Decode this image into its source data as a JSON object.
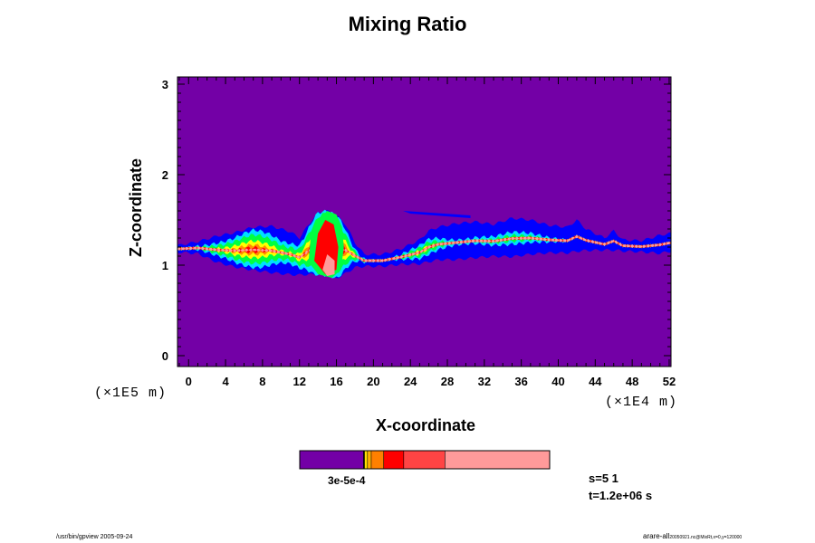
{
  "chart_data": {
    "type": "heatmap",
    "title": "Mixing Ratio",
    "xlabel": "X-coordinate",
    "ylabel": "Z-coordinate",
    "x_unit": "(×1E4 m)",
    "z_unit": "(×1E5 m)",
    "x_ticks": [
      "0",
      "4",
      "8",
      "12",
      "16",
      "20",
      "24",
      "28",
      "32",
      "36",
      "40",
      "44",
      "48",
      "52"
    ],
    "z_ticks": [
      "0",
      "1",
      "2",
      "3"
    ],
    "xlim": [
      -1.2,
      52.2
    ],
    "zlim": [
      -0.12,
      3.08
    ],
    "background_color": "#7300A6",
    "colorbar": {
      "segments": [
        {
          "color": "#7300A6",
          "width": 0.255
        },
        {
          "color": "#000000",
          "width": 0.004
        },
        {
          "color": "#FFE000",
          "width": 0.012
        },
        {
          "color": "#FFB000",
          "width": 0.015
        },
        {
          "color": "#FF8000",
          "width": 0.05
        },
        {
          "color": "#FF0000",
          "width": 0.08
        },
        {
          "color": "#FF4444",
          "width": 0.165
        },
        {
          "color": "#FF9A9A",
          "width": 0.419
        }
      ],
      "label": "3e-5e-4"
    },
    "cloud_layer": {
      "description_levels": [
        "blue",
        "cyan",
        "green",
        "yellow",
        "orange",
        "red",
        "pink"
      ],
      "colors": {
        "blue": "#0000FF",
        "cyan": "#00E0FF",
        "green": "#00FF40",
        "yellow": "#FFFF00",
        "orange": "#FF8C00",
        "red": "#FF0000",
        "pink": "#FF9A9A"
      },
      "upper": [
        [
          -1,
          1.22
        ],
        [
          1,
          1.26
        ],
        [
          3,
          1.32
        ],
        [
          5,
          1.36
        ],
        [
          7,
          1.42
        ],
        [
          9,
          1.43
        ],
        [
          11,
          1.37
        ],
        [
          12,
          1.3
        ],
        [
          13,
          1.45
        ],
        [
          14,
          1.58
        ],
        [
          15,
          1.6
        ],
        [
          16,
          1.55
        ],
        [
          17,
          1.45
        ],
        [
          18,
          1.25
        ],
        [
          19,
          1.12
        ],
        [
          21,
          1.12
        ],
        [
          23,
          1.18
        ],
        [
          25,
          1.28
        ],
        [
          26,
          1.38
        ],
        [
          27,
          1.42
        ],
        [
          29,
          1.46
        ],
        [
          31,
          1.48
        ],
        [
          33,
          1.45
        ],
        [
          35,
          1.52
        ],
        [
          37,
          1.5
        ],
        [
          39,
          1.44
        ],
        [
          41,
          1.42
        ],
        [
          42,
          1.5
        ],
        [
          43,
          1.4
        ],
        [
          45,
          1.3
        ],
        [
          46,
          1.38
        ],
        [
          47,
          1.28
        ],
        [
          49,
          1.27
        ],
        [
          51,
          1.33
        ],
        [
          52,
          1.35
        ]
      ],
      "lower": [
        [
          -1,
          1.14
        ],
        [
          1,
          1.12
        ],
        [
          3,
          1.02
        ],
        [
          5,
          0.96
        ],
        [
          7,
          0.92
        ],
        [
          9,
          0.89
        ],
        [
          11,
          0.87
        ],
        [
          13,
          0.87
        ],
        [
          15,
          0.85
        ],
        [
          16,
          0.82
        ],
        [
          17,
          0.88
        ],
        [
          18,
          0.96
        ],
        [
          19,
          0.98
        ],
        [
          21,
          0.98
        ],
        [
          23,
          1.0
        ],
        [
          25,
          1.0
        ],
        [
          27,
          1.04
        ],
        [
          29,
          1.04
        ],
        [
          31,
          1.06
        ],
        [
          33,
          1.08
        ],
        [
          35,
          1.07
        ],
        [
          37,
          1.1
        ],
        [
          39,
          1.12
        ],
        [
          41,
          1.12
        ],
        [
          43,
          1.15
        ],
        [
          45,
          1.16
        ],
        [
          47,
          1.15
        ],
        [
          49,
          1.14
        ],
        [
          51,
          1.12
        ],
        [
          52,
          1.14
        ]
      ]
    },
    "stats": {
      "s": "s=5 1",
      "t": "t=1.2e+06 s"
    },
    "grid": false
  },
  "footer": {
    "left": "/usr/bin/gpview 2005-09-24",
    "right_main": "arare-all",
    "right_small": "20050921.nc@MixRt,x=0,y=120000"
  }
}
